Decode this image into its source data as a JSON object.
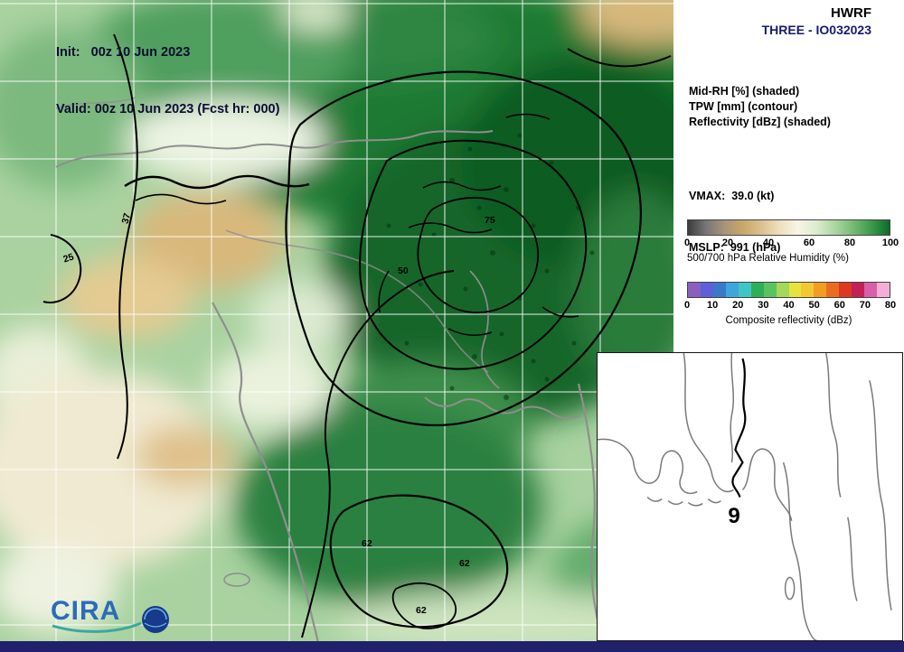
{
  "header": {
    "init": "Init:   00z 10 Jun 2023",
    "valid": "Valid: 00z 10 Jun 2023 (Fcst hr: 000)"
  },
  "panel": {
    "model": "HWRF",
    "storm_id": "THREE - IO032023",
    "fields": [
      "Mid-RH [%] (shaded)",
      "TPW [mm] (contour)",
      "Reflectivity [dBz] (shaded)"
    ],
    "vmax": "VMAX:  39.0 (kt)",
    "mslp": "MSLP:  991 (hPa)",
    "rh_colorbar": {
      "ticks": [
        "0",
        "20",
        "40",
        "60",
        "80",
        "100"
      ],
      "caption": "500/700 hPa Relative Humidity (%)",
      "colors": [
        "#3c3c3c",
        "#777777",
        "#a89478",
        "#c9a769",
        "#dcc08e",
        "#efe0bd",
        "#f8f4e6",
        "#ddeccf",
        "#aed6a2",
        "#77bb76",
        "#3d9a4c",
        "#0d6b2b"
      ]
    },
    "refl_colorbar": {
      "ticks": [
        "0",
        "10",
        "20",
        "30",
        "40",
        "50",
        "60",
        "70",
        "80"
      ],
      "caption": "Composite reflectivity (dBz)",
      "colors": [
        "#8a5fc0",
        "#5f5fd8",
        "#3c78c8",
        "#3fa6dc",
        "#3ec6c6",
        "#2fae58",
        "#59c45e",
        "#a4d858",
        "#e6e33f",
        "#f2c832",
        "#f29c22",
        "#ea6c20",
        "#dd3822",
        "#c41f56",
        "#d85fa8",
        "#f2aed6"
      ]
    }
  },
  "map": {
    "contour_labels": [
      {
        "text": "37"
      },
      {
        "text": "25"
      },
      {
        "text": "50"
      },
      {
        "text": "62"
      },
      {
        "text": "62"
      },
      {
        "text": "62"
      },
      {
        "text": "75"
      }
    ],
    "logo_text": "CIRA",
    "inset_track_label": "9"
  },
  "colors": {
    "bottom_bar": "#20206b",
    "storm_id_text": "#1a1a70"
  },
  "chart_data": {
    "type": "heatmap",
    "title": "HWRF THREE - IO032023 — Mid-RH (shaded), TPW (contour), Reflectivity (shaded)",
    "init": "00z 10 Jun 2023",
    "valid": "00z 10 Jun 2023",
    "forecast_hour": 0,
    "vmax_kt": 39.0,
    "mslp_hpa": 991,
    "tpw_contour_values_mm": [
      25,
      37,
      50,
      62,
      75
    ],
    "colorbars": [
      {
        "label": "500/700 hPa Relative Humidity (%)",
        "range": [
          0,
          100
        ],
        "ticks": [
          0,
          20,
          40,
          60,
          80,
          100
        ]
      },
      {
        "label": "Composite reflectivity (dBz)",
        "range": [
          0,
          80
        ],
        "ticks": [
          0,
          10,
          20,
          30,
          40,
          50,
          60,
          70,
          80
        ]
      }
    ]
  }
}
